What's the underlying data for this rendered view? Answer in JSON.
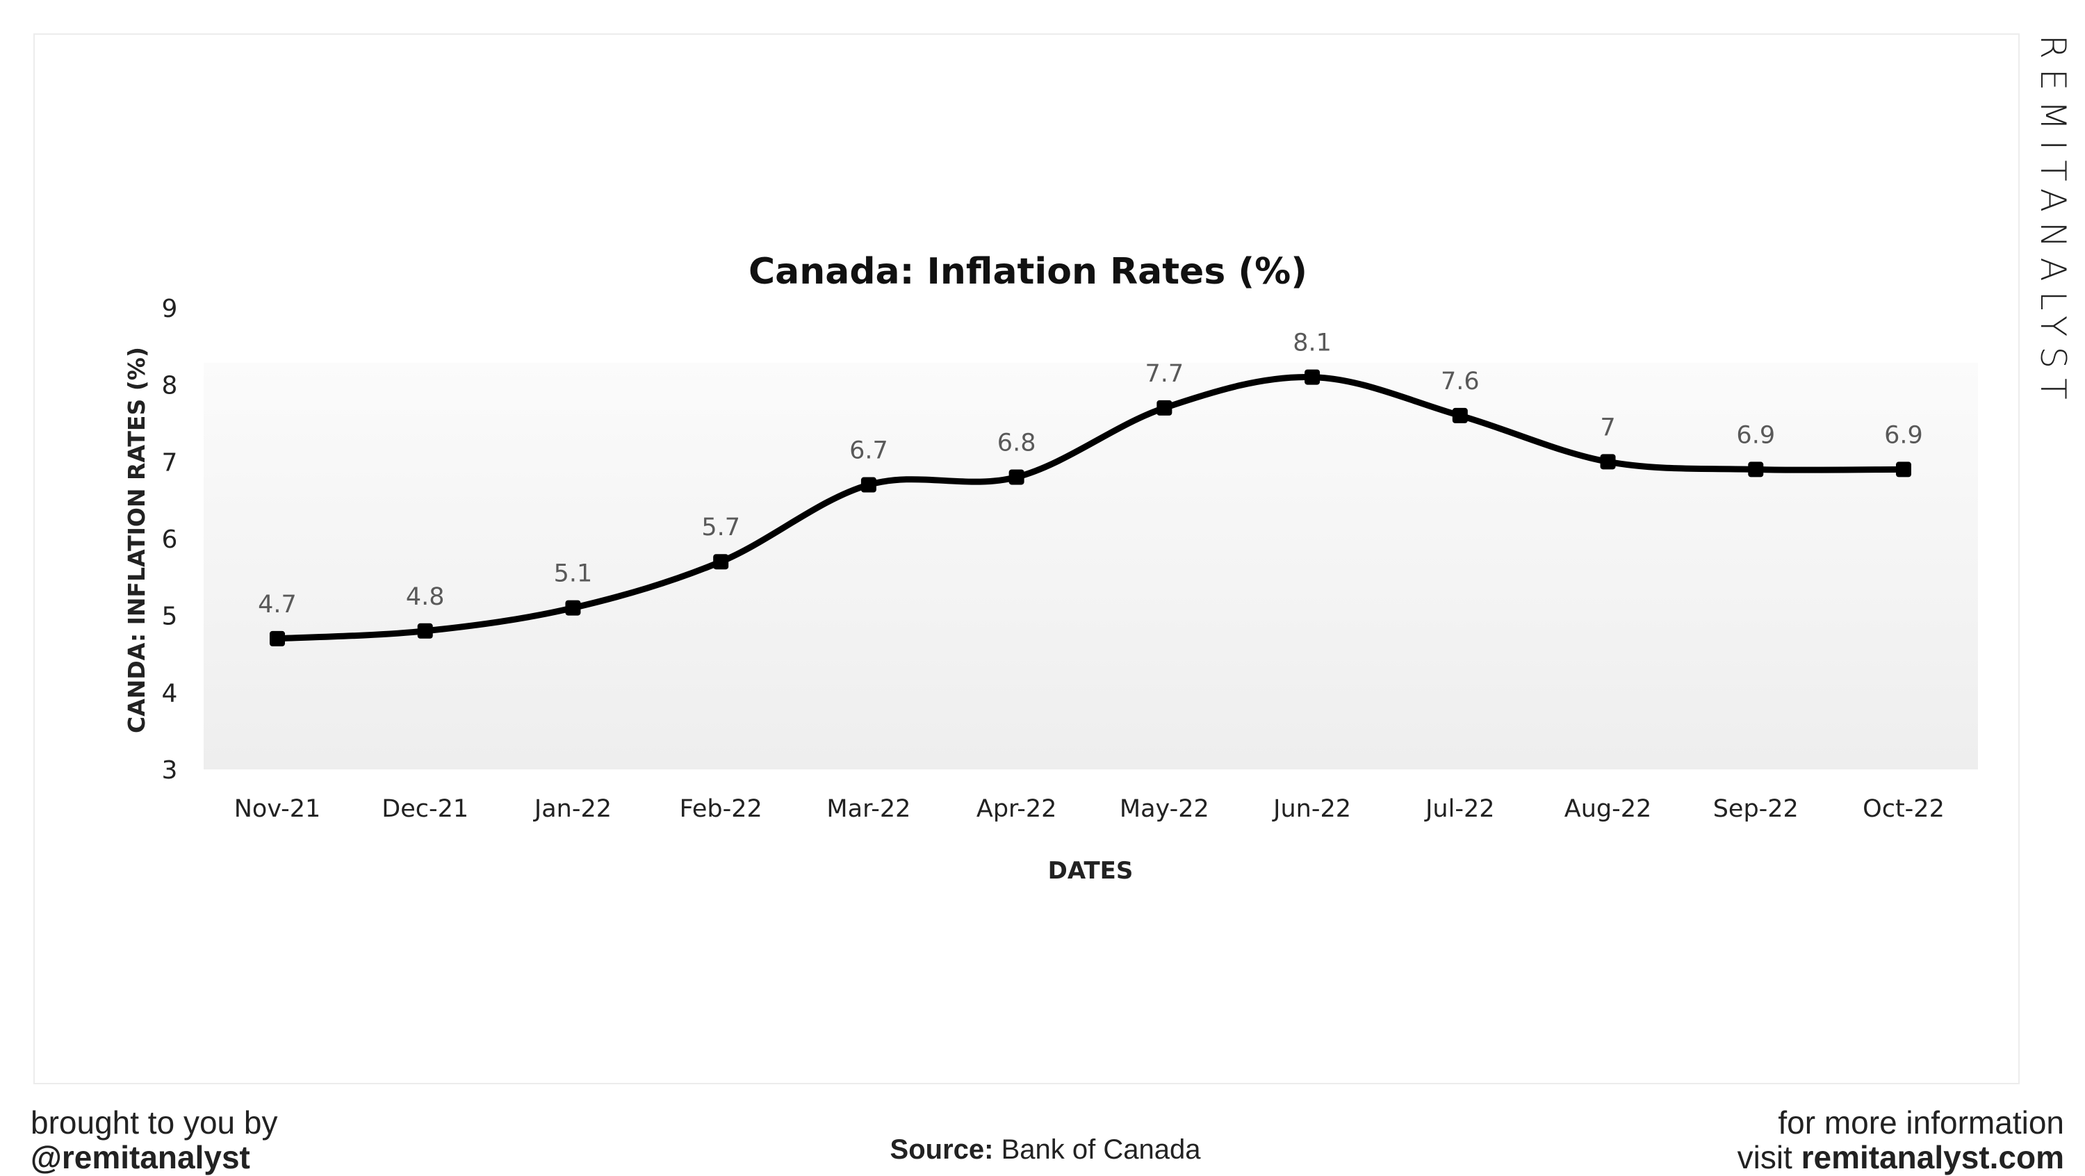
{
  "brand": "REMITANALYST",
  "chart_data": {
    "type": "line",
    "title": "Canada:  Inflation Rates (%)",
    "xlabel": "DATES",
    "ylabel": "CANDA: INFLATION RATES (%)",
    "categories": [
      "Nov-21",
      "Dec-21",
      "Jan-22",
      "Feb-22",
      "Mar-22",
      "Apr-22",
      "May-22",
      "Jun-22",
      "Jul-22",
      "Aug-22",
      "Sep-22",
      "Oct-22"
    ],
    "values": [
      4.7,
      4.8,
      5.1,
      5.7,
      6.7,
      6.8,
      7.7,
      8.1,
      7.6,
      7,
      6.9,
      6.9
    ],
    "data_labels": [
      "4.7",
      "4.8",
      "5.1",
      "5.7",
      "6.7",
      "6.8",
      "7.7",
      "8.1",
      "7.6",
      "7",
      "6.9",
      "6.9"
    ],
    "ylim": [
      3,
      9
    ],
    "yticks": [
      "3",
      "4",
      "5",
      "6",
      "7",
      "8",
      "9"
    ],
    "grid": false,
    "smooth": true,
    "line_color": "#000000",
    "label_color": "#595959"
  },
  "footer": {
    "left_line1": "brought to you by",
    "left_line2": "@remitanalyst",
    "source_label": "Source:",
    "source_value": " Bank of Canada",
    "right_line1": "for more information",
    "right_line2_prefix": "visit ",
    "right_line2_site": "remitanalyst.com"
  }
}
